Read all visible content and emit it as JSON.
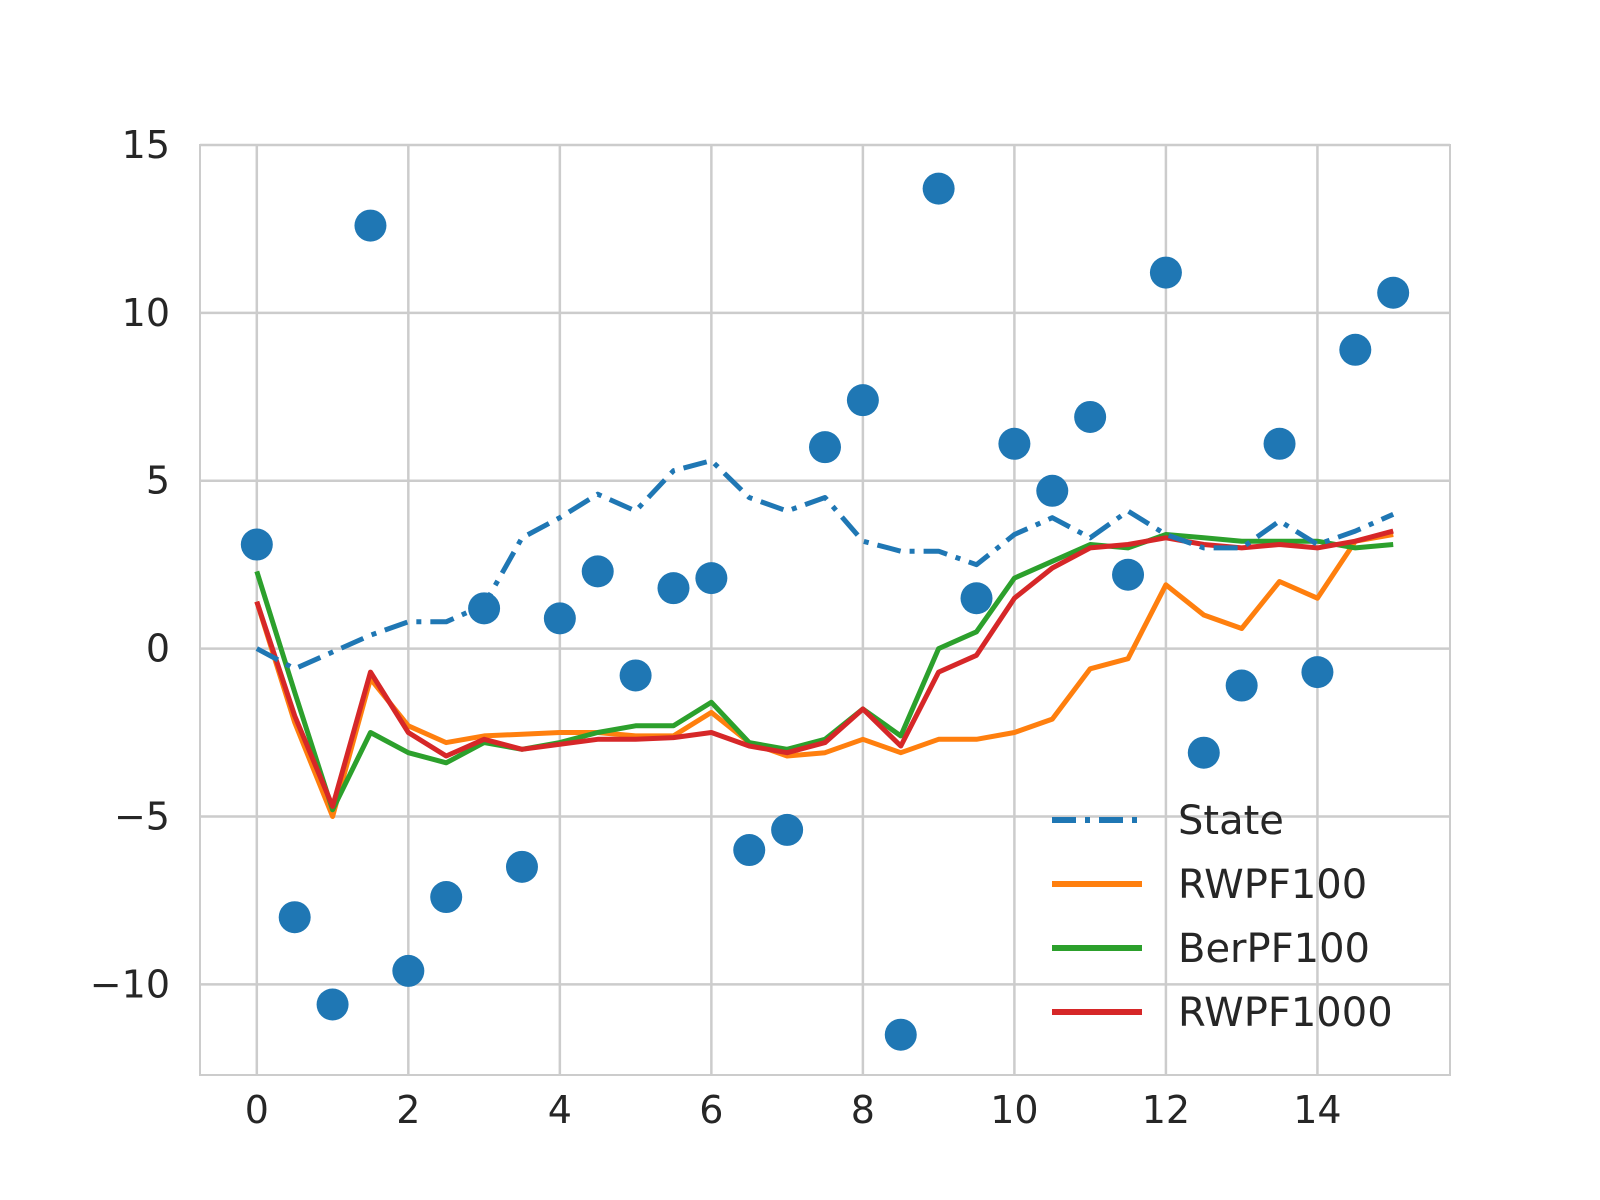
{
  "chart_data": {
    "type": "line",
    "title": "",
    "xlabel": "",
    "ylabel": "",
    "xlim": [
      -0.75,
      15.75
    ],
    "ylim": [
      -12.7,
      15
    ],
    "xticks": [
      0,
      2,
      4,
      6,
      8,
      10,
      12,
      14
    ],
    "yticks": [
      -10,
      -5,
      0,
      5,
      10,
      15
    ],
    "xtick_labels": [
      "0",
      "2",
      "4",
      "6",
      "8",
      "10",
      "12",
      "14"
    ],
    "ytick_labels": [
      "−10",
      "−5",
      "0",
      "5",
      "10",
      "15"
    ],
    "grid": true,
    "legend_position": "lower-right",
    "x": [
      0,
      0.5,
      1,
      1.5,
      2,
      2.5,
      3,
      3.5,
      4,
      4.5,
      5,
      5.5,
      6,
      6.5,
      7,
      7.5,
      8,
      8.5,
      9,
      9.5,
      10,
      10.5,
      11,
      11.5,
      12,
      12.5,
      13,
      13.5,
      14,
      14.5,
      15
    ],
    "observations": {
      "color": "#1f77b4",
      "values": [
        3.1,
        -8.0,
        -10.6,
        12.6,
        -9.6,
        -7.4,
        1.2,
        -6.5,
        0.9,
        2.3,
        -0.8,
        1.8,
        2.1,
        -6.0,
        -5.4,
        6.0,
        7.4,
        -11.5,
        13.7,
        1.5,
        6.1,
        4.7,
        6.9,
        2.2,
        11.2,
        -3.1,
        -1.1,
        6.1,
        -0.7,
        8.9,
        10.6
      ]
    },
    "series": [
      {
        "name": "State",
        "color": "#1f77b4",
        "style": "dashdot",
        "values": [
          0.0,
          -0.6,
          -0.1,
          0.4,
          0.8,
          0.8,
          1.3,
          3.3,
          3.9,
          4.6,
          4.1,
          5.3,
          5.6,
          4.5,
          4.1,
          4.5,
          3.2,
          2.9,
          2.9,
          2.5,
          3.4,
          3.9,
          3.3,
          4.1,
          3.4,
          3.0,
          3.0,
          3.8,
          3.1,
          3.5,
          4.0
        ]
      },
      {
        "name": "RWPF100",
        "color": "#ff7f0e",
        "style": "solid",
        "values": [
          1.4,
          -2.2,
          -5.0,
          -0.9,
          -2.3,
          -2.8,
          -2.6,
          -2.55,
          -2.5,
          -2.5,
          -2.6,
          -2.6,
          -1.9,
          -2.8,
          -3.2,
          -3.1,
          -2.7,
          -3.1,
          -2.7,
          -2.7,
          -2.5,
          -2.1,
          -0.6,
          -0.3,
          1.9,
          1.0,
          0.6,
          2.0,
          1.5,
          3.2,
          3.4
        ]
      },
      {
        "name": "BerPF100",
        "color": "#2ca02c",
        "style": "solid",
        "values": [
          2.3,
          -1.3,
          -4.8,
          -2.5,
          -3.1,
          -3.4,
          -2.8,
          -3.0,
          -2.8,
          -2.5,
          -2.3,
          -2.3,
          -1.6,
          -2.8,
          -3.0,
          -2.7,
          -1.8,
          -2.6,
          0.0,
          0.5,
          2.1,
          2.6,
          3.1,
          3.0,
          3.4,
          3.3,
          3.2,
          3.2,
          3.2,
          3.0,
          3.1
        ]
      },
      {
        "name": "RWPF1000",
        "color": "#d62728",
        "style": "solid",
        "values": [
          1.4,
          -2.0,
          -4.7,
          -0.7,
          -2.5,
          -3.2,
          -2.7,
          -3.0,
          -2.85,
          -2.7,
          -2.7,
          -2.65,
          -2.5,
          -2.9,
          -3.1,
          -2.8,
          -1.8,
          -2.9,
          -0.7,
          -0.2,
          1.5,
          2.4,
          3.0,
          3.1,
          3.3,
          3.1,
          3.0,
          3.1,
          3.0,
          3.2,
          3.5
        ]
      }
    ]
  }
}
